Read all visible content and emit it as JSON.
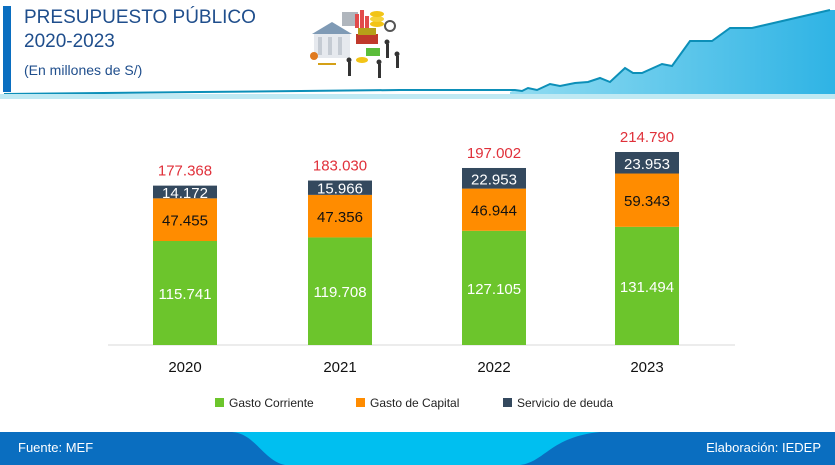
{
  "header": {
    "title_line1": "PRESUPUESTO PÚBLICO",
    "title_line2": "2020-2023",
    "subtitle": "(En millones de S/)",
    "illustration": "budget-illustration-icon",
    "decoration": "rising-line-graph-banner"
  },
  "colors": {
    "gasto_corriente": "#6cc52c",
    "gasto_capital": "#ff8c00",
    "servicio_deuda": "#34495e",
    "total_label": "#e0303a",
    "title": "#1f4e8c",
    "footer": "#0a6ec0",
    "footer_accent": "#00bff0"
  },
  "chart_data": {
    "type": "bar",
    "stacked": true,
    "title": "PRESUPUESTO PÚBLICO 2020-2023",
    "subtitle": "(En millones de S/)",
    "categories": [
      "2020",
      "2021",
      "2022",
      "2023"
    ],
    "series": [
      {
        "name": "Gasto Corriente",
        "values": [
          115741,
          119708,
          127105,
          131494
        ],
        "labels": [
          "115.741",
          "119.708",
          "127.105",
          "131.494"
        ]
      },
      {
        "name": "Gasto de Capital",
        "values": [
          47455,
          47356,
          46944,
          59343
        ],
        "labels": [
          "47.455",
          "47.356",
          "46.944",
          "59.343"
        ]
      },
      {
        "name": "Servicio de deuda",
        "values": [
          14172,
          15966,
          22953,
          23953
        ],
        "labels": [
          "14.172",
          "15.966",
          "22.953",
          "23.953"
        ]
      }
    ],
    "totals": [
      177368,
      183030,
      197002,
      214790
    ],
    "total_labels": [
      "177.368",
      "183.030",
      "197.002",
      "214.790"
    ],
    "xlabel": "",
    "ylabel": "",
    "ylim": [
      0,
      220000
    ],
    "grid": false,
    "legend": "bottom"
  },
  "footer": {
    "source": "Fuente: MEF",
    "credit": "Elaboración: IEDEP"
  }
}
